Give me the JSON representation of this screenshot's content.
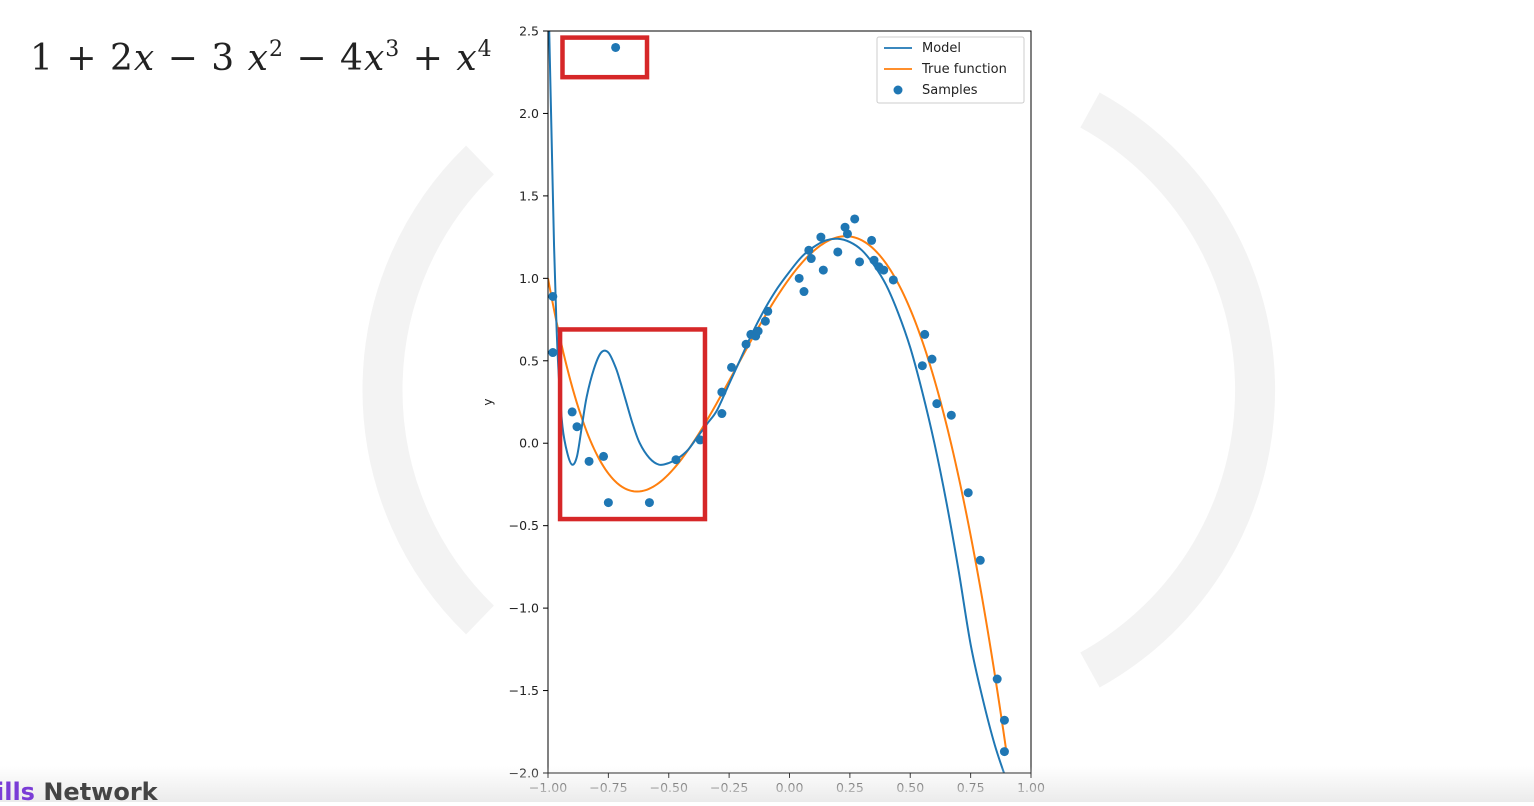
{
  "equation": {
    "c0": "1",
    "op1": "+",
    "t1_coef": "2",
    "t1_var": "x",
    "op2": "−",
    "t2_coef": "3",
    "t2_var": "x",
    "t2_pow": "2",
    "op3": "−",
    "t3_coef": "4",
    "t3_var": "x",
    "t3_pow": "3",
    "op4": "+",
    "t4_var": "x",
    "t4_pow": "4"
  },
  "brand": {
    "part1": "ills",
    "part2": " Network"
  },
  "colors": {
    "model": "#1f77b4",
    "true_function": "#ff7f0e",
    "samples": "#1f77b4",
    "highlight_box": "#d62728"
  },
  "chart_data": {
    "type": "line",
    "xlabel": "",
    "ylabel": "y",
    "xlim": [
      -1.0,
      1.0
    ],
    "ylim": [
      -2.0,
      2.5
    ],
    "xticks": [
      "−1.00",
      "−0.75",
      "−0.50",
      "−0.25",
      "0.00",
      "0.25",
      "0.50",
      "0.75",
      "1.00"
    ],
    "xtick_values": [
      -1.0,
      -0.75,
      -0.5,
      -0.25,
      0.0,
      0.25,
      0.5,
      0.75,
      1.0
    ],
    "yticks": [
      "2.5",
      "2.0",
      "1.5",
      "1.0",
      "0.5",
      "0.0",
      "−0.5",
      "−1.0",
      "−1.5",
      "−2.0"
    ],
    "ytick_values": [
      2.5,
      2.0,
      1.5,
      1.0,
      0.5,
      0.0,
      -0.5,
      -1.0,
      -1.5,
      -2.0
    ],
    "grid": false,
    "legend_position": "top-right",
    "series": [
      {
        "name": "Model",
        "kind": "line",
        "x": [
          -0.995,
          -0.985,
          -0.975,
          -0.965,
          -0.955,
          -0.94,
          -0.92,
          -0.9,
          -0.88,
          -0.86,
          -0.84,
          -0.81,
          -0.78,
          -0.75,
          -0.72,
          -0.7,
          -0.68,
          -0.65,
          -0.62,
          -0.58,
          -0.54,
          -0.5,
          -0.46,
          -0.42,
          -0.38,
          -0.34,
          -0.3,
          -0.25,
          -0.2,
          -0.15,
          -0.1,
          -0.05,
          0.0,
          0.05,
          0.1,
          0.15,
          0.2,
          0.25,
          0.3,
          0.35,
          0.4,
          0.45,
          0.5,
          0.55,
          0.6,
          0.65,
          0.7,
          0.75,
          0.8,
          0.85,
          0.9
        ],
        "y": [
          2.5,
          1.85,
          1.2,
          0.72,
          0.4,
          0.1,
          -0.06,
          -0.13,
          -0.08,
          0.1,
          0.28,
          0.45,
          0.55,
          0.55,
          0.46,
          0.37,
          0.27,
          0.12,
          0.0,
          -0.09,
          -0.13,
          -0.12,
          -0.09,
          -0.04,
          0.04,
          0.12,
          0.2,
          0.36,
          0.52,
          0.68,
          0.82,
          0.94,
          1.04,
          1.13,
          1.19,
          1.23,
          1.24,
          1.22,
          1.17,
          1.08,
          0.96,
          0.79,
          0.58,
          0.31,
          0.0,
          -0.36,
          -0.77,
          -1.22,
          -1.55,
          -1.83,
          -2.05
        ]
      },
      {
        "name": "True function",
        "kind": "line",
        "expression": "1 + 2x - 3x^2 - 4x^3 + x^4",
        "x_range": [
          -1.0,
          0.9
        ]
      },
      {
        "name": "Samples",
        "kind": "scatter",
        "x": [
          -0.98,
          -0.98,
          -0.9,
          -0.88,
          -0.83,
          -0.77,
          -0.75,
          -0.72,
          -0.58,
          -0.47,
          -0.37,
          -0.28,
          -0.28,
          -0.24,
          -0.18,
          -0.16,
          -0.14,
          -0.13,
          -0.1,
          -0.09,
          0.04,
          0.06,
          0.08,
          0.09,
          0.13,
          0.14,
          0.2,
          0.23,
          0.24,
          0.27,
          0.29,
          0.34,
          0.35,
          0.37,
          0.39,
          0.43,
          0.55,
          0.56,
          0.59,
          0.61,
          0.67,
          0.74,
          0.79,
          0.86,
          0.89,
          0.89
        ],
        "y": [
          0.89,
          0.55,
          0.19,
          0.1,
          -0.11,
          -0.08,
          -0.36,
          2.4,
          -0.36,
          -0.1,
          0.02,
          0.18,
          0.31,
          0.46,
          0.6,
          0.66,
          0.65,
          0.68,
          0.74,
          0.8,
          1.0,
          0.92,
          1.17,
          1.12,
          1.25,
          1.05,
          1.16,
          1.31,
          1.27,
          1.36,
          1.1,
          1.23,
          1.11,
          1.07,
          1.05,
          0.99,
          0.47,
          0.66,
          0.51,
          0.24,
          0.17,
          -0.3,
          -0.71,
          -1.43,
          -1.68,
          -1.87
        ]
      }
    ],
    "highlight_boxes": [
      {
        "x": [
          -0.94,
          -0.59
        ],
        "y": [
          2.46,
          2.22
        ]
      },
      {
        "x": [
          -0.95,
          -0.35
        ],
        "y": [
          0.69,
          -0.46
        ]
      }
    ]
  }
}
